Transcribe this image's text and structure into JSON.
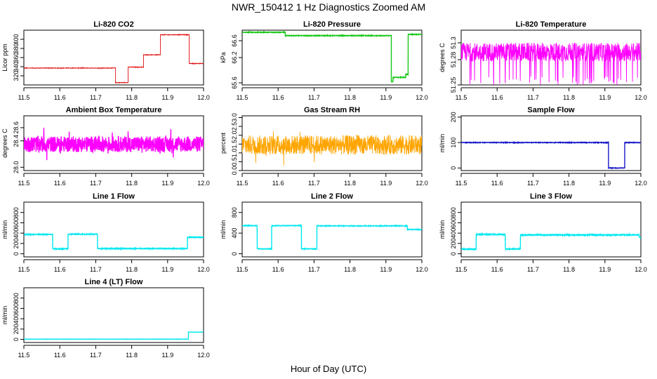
{
  "figure": {
    "title": "NWR_150412  1 Hz Diagnostics Zoomed AM",
    "xlabel": "Hour of Day (UTC)"
  },
  "chart_data": [
    {
      "type": "line",
      "title": "Li-820 CO2",
      "ylabel": "Licor ppm",
      "color": "#e01010",
      "xlim": [
        11.5,
        12.0
      ],
      "ylim": [
        300,
        420
      ],
      "yticks": [
        {
          "v": 320,
          "t": "320"
        },
        {
          "v": 340,
          "t": "340"
        },
        {
          "v": 360,
          "t": "360"
        },
        {
          "v": 380,
          "t": "380"
        },
        {
          "v": 400,
          "t": "400"
        }
      ],
      "segments": [
        [
          11.5,
          11.755,
          337
        ],
        [
          11.755,
          11.79,
          305
        ],
        [
          11.79,
          11.833,
          339
        ],
        [
          11.833,
          11.88,
          366
        ],
        [
          11.88,
          11.96,
          410
        ],
        [
          11.96,
          12.0,
          347
        ]
      ],
      "noise": 0.7
    },
    {
      "type": "line",
      "title": "Li-820 Pressure",
      "ylabel": "kPa",
      "color": "#18c818",
      "xlim": [
        11.5,
        12.0
      ],
      "ylim": [
        65.55,
        66.85
      ],
      "yticks": [
        {
          "v": 65.6,
          "t": "65.6"
        },
        {
          "v": 66.2,
          "t": "66.2"
        },
        {
          "v": 66.6,
          "t": "66.6"
        }
      ],
      "segments": [
        [
          11.5,
          11.62,
          66.8
        ],
        [
          11.62,
          11.915,
          66.72
        ],
        [
          11.915,
          11.92,
          65.63
        ],
        [
          11.92,
          11.955,
          65.73
        ],
        [
          11.955,
          11.962,
          65.8
        ],
        [
          11.962,
          12.0,
          66.75
        ]
      ],
      "noise": 0.008
    },
    {
      "type": "line",
      "title": "Li-820 Temperature",
      "ylabel": "degrees C",
      "color": "#ff00ff",
      "xlim": [
        11.5,
        12.0
      ],
      "ylim": [
        51.25,
        51.315
      ],
      "yticks": [
        {
          "v": 51.25,
          "t": "51.25"
        },
        {
          "v": 51.28,
          "t": "51.28"
        },
        {
          "v": 51.3,
          "t": "51.3"
        }
      ],
      "segments": [
        [
          11.5,
          12.0,
          51.289
        ]
      ],
      "noise": 0.011,
      "spikes": 51.25
    },
    {
      "type": "line",
      "title": "Ambient Box Temperature",
      "ylabel": "degrees C",
      "color": "#ff00ff",
      "xlim": [
        11.5,
        12.0
      ],
      "ylim": [
        27.95,
        28.78
      ],
      "yticks": [
        {
          "v": 28.0,
          "t": "28.0"
        },
        {
          "v": 28.4,
          "t": "28.4"
        },
        {
          "v": 28.6,
          "t": "28.6"
        }
      ],
      "segments": [
        [
          11.5,
          12.0,
          28.35
        ]
      ],
      "noise": 0.12
    },
    {
      "type": "line",
      "title": "Gas Stream RH",
      "ylabel": "percent",
      "color": "#ffa500",
      "xlim": [
        11.5,
        12.0
      ],
      "ylim": [
        0,
        3.1
      ],
      "yticks": [
        {
          "v": 0,
          "t": "0.0"
        },
        {
          "v": 0.5,
          "t": "0.5"
        },
        {
          "v": 1.0,
          "t": "1.0"
        },
        {
          "v": 1.5,
          "t": "1.5"
        },
        {
          "v": 2.0,
          "t": "2.0"
        },
        {
          "v": 2.5,
          "t": "2.5"
        },
        {
          "v": 3.0,
          "t": "3.0"
        }
      ],
      "segments": [
        [
          11.5,
          12.0,
          1.45
        ]
      ],
      "noise": 0.55
    },
    {
      "type": "line",
      "title": "Sample Flow",
      "ylabel": "ml/min",
      "color": "#1818c8",
      "xlim": [
        11.5,
        12.0
      ],
      "ylim": [
        -10,
        205
      ],
      "yticks": [
        {
          "v": 0,
          "t": "0"
        },
        {
          "v": 100,
          "t": "100"
        },
        {
          "v": 200,
          "t": "200"
        }
      ],
      "segments": [
        [
          11.5,
          11.91,
          100
        ],
        [
          11.91,
          11.955,
          0
        ],
        [
          11.955,
          12.0,
          100
        ]
      ],
      "noise": 1.2
    },
    {
      "type": "line",
      "title": "Line 1 Flow",
      "ylabel": "ml/min",
      "color": "#00e8f0",
      "xlim": [
        11.5,
        12.0
      ],
      "ylim": [
        -60,
        1000
      ],
      "yticks": [
        {
          "v": 0,
          "t": "0"
        },
        {
          "v": 200,
          "t": "200"
        },
        {
          "v": 400,
          "t": "400"
        },
        {
          "v": 600,
          "t": "600"
        },
        {
          "v": 800,
          "t": "800"
        }
      ],
      "segments": [
        [
          11.5,
          11.58,
          375
        ],
        [
          11.58,
          11.623,
          95
        ],
        [
          11.623,
          11.705,
          380
        ],
        [
          11.705,
          11.955,
          100
        ],
        [
          11.955,
          12.0,
          320
        ]
      ],
      "noise": 8
    },
    {
      "type": "line",
      "title": "Line 2 Flow",
      "ylabel": "ml/min",
      "color": "#00e8f0",
      "xlim": [
        11.5,
        12.0
      ],
      "ylim": [
        -60,
        1000
      ],
      "yticks": [
        {
          "v": 0,
          "t": "0"
        },
        {
          "v": 400,
          "t": "400"
        },
        {
          "v": 800,
          "t": "800"
        }
      ],
      "segments": [
        [
          11.5,
          11.542,
          545
        ],
        [
          11.542,
          11.582,
          95
        ],
        [
          11.582,
          11.665,
          545
        ],
        [
          11.665,
          11.708,
          95
        ],
        [
          11.708,
          11.96,
          540
        ],
        [
          11.96,
          12.0,
          470
        ]
      ],
      "noise": 6
    },
    {
      "type": "line",
      "title": "Line 3 Flow",
      "ylabel": "ml/min",
      "color": "#00e8f0",
      "xlim": [
        11.5,
        12.0
      ],
      "ylim": [
        -60,
        1000
      ],
      "yticks": [
        {
          "v": 0,
          "t": "0"
        },
        {
          "v": 200,
          "t": "200"
        },
        {
          "v": 400,
          "t": "400"
        },
        {
          "v": 600,
          "t": "600"
        },
        {
          "v": 800,
          "t": "800"
        }
      ],
      "segments": [
        [
          11.5,
          11.542,
          90
        ],
        [
          11.542,
          11.623,
          375
        ],
        [
          11.623,
          11.665,
          95
        ],
        [
          11.665,
          11.996,
          365
        ],
        [
          11.996,
          12.0,
          310
        ]
      ],
      "noise": 10
    },
    {
      "type": "line",
      "title": "Line 4 (LT) Flow",
      "ylabel": "ml/min",
      "color": "#00e8f0",
      "xlim": [
        11.5,
        12.0
      ],
      "ylim": [
        -60,
        1000
      ],
      "yticks": [
        {
          "v": 0,
          "t": "0"
        },
        {
          "v": 200,
          "t": "200"
        },
        {
          "v": 400,
          "t": "400"
        },
        {
          "v": 600,
          "t": "600"
        },
        {
          "v": 800,
          "t": "800"
        }
      ],
      "segments": [
        [
          11.5,
          11.958,
          5
        ],
        [
          11.958,
          12.0,
          140
        ]
      ],
      "noise": 2
    }
  ],
  "xticks": [
    {
      "v": 11.5,
      "t": "11.5"
    },
    {
      "v": 11.6,
      "t": "11.6"
    },
    {
      "v": 11.7,
      "t": "11.7"
    },
    {
      "v": 11.8,
      "t": "11.8"
    },
    {
      "v": 11.9,
      "t": "11.9"
    },
    {
      "v": 12.0,
      "t": "12.0"
    }
  ]
}
